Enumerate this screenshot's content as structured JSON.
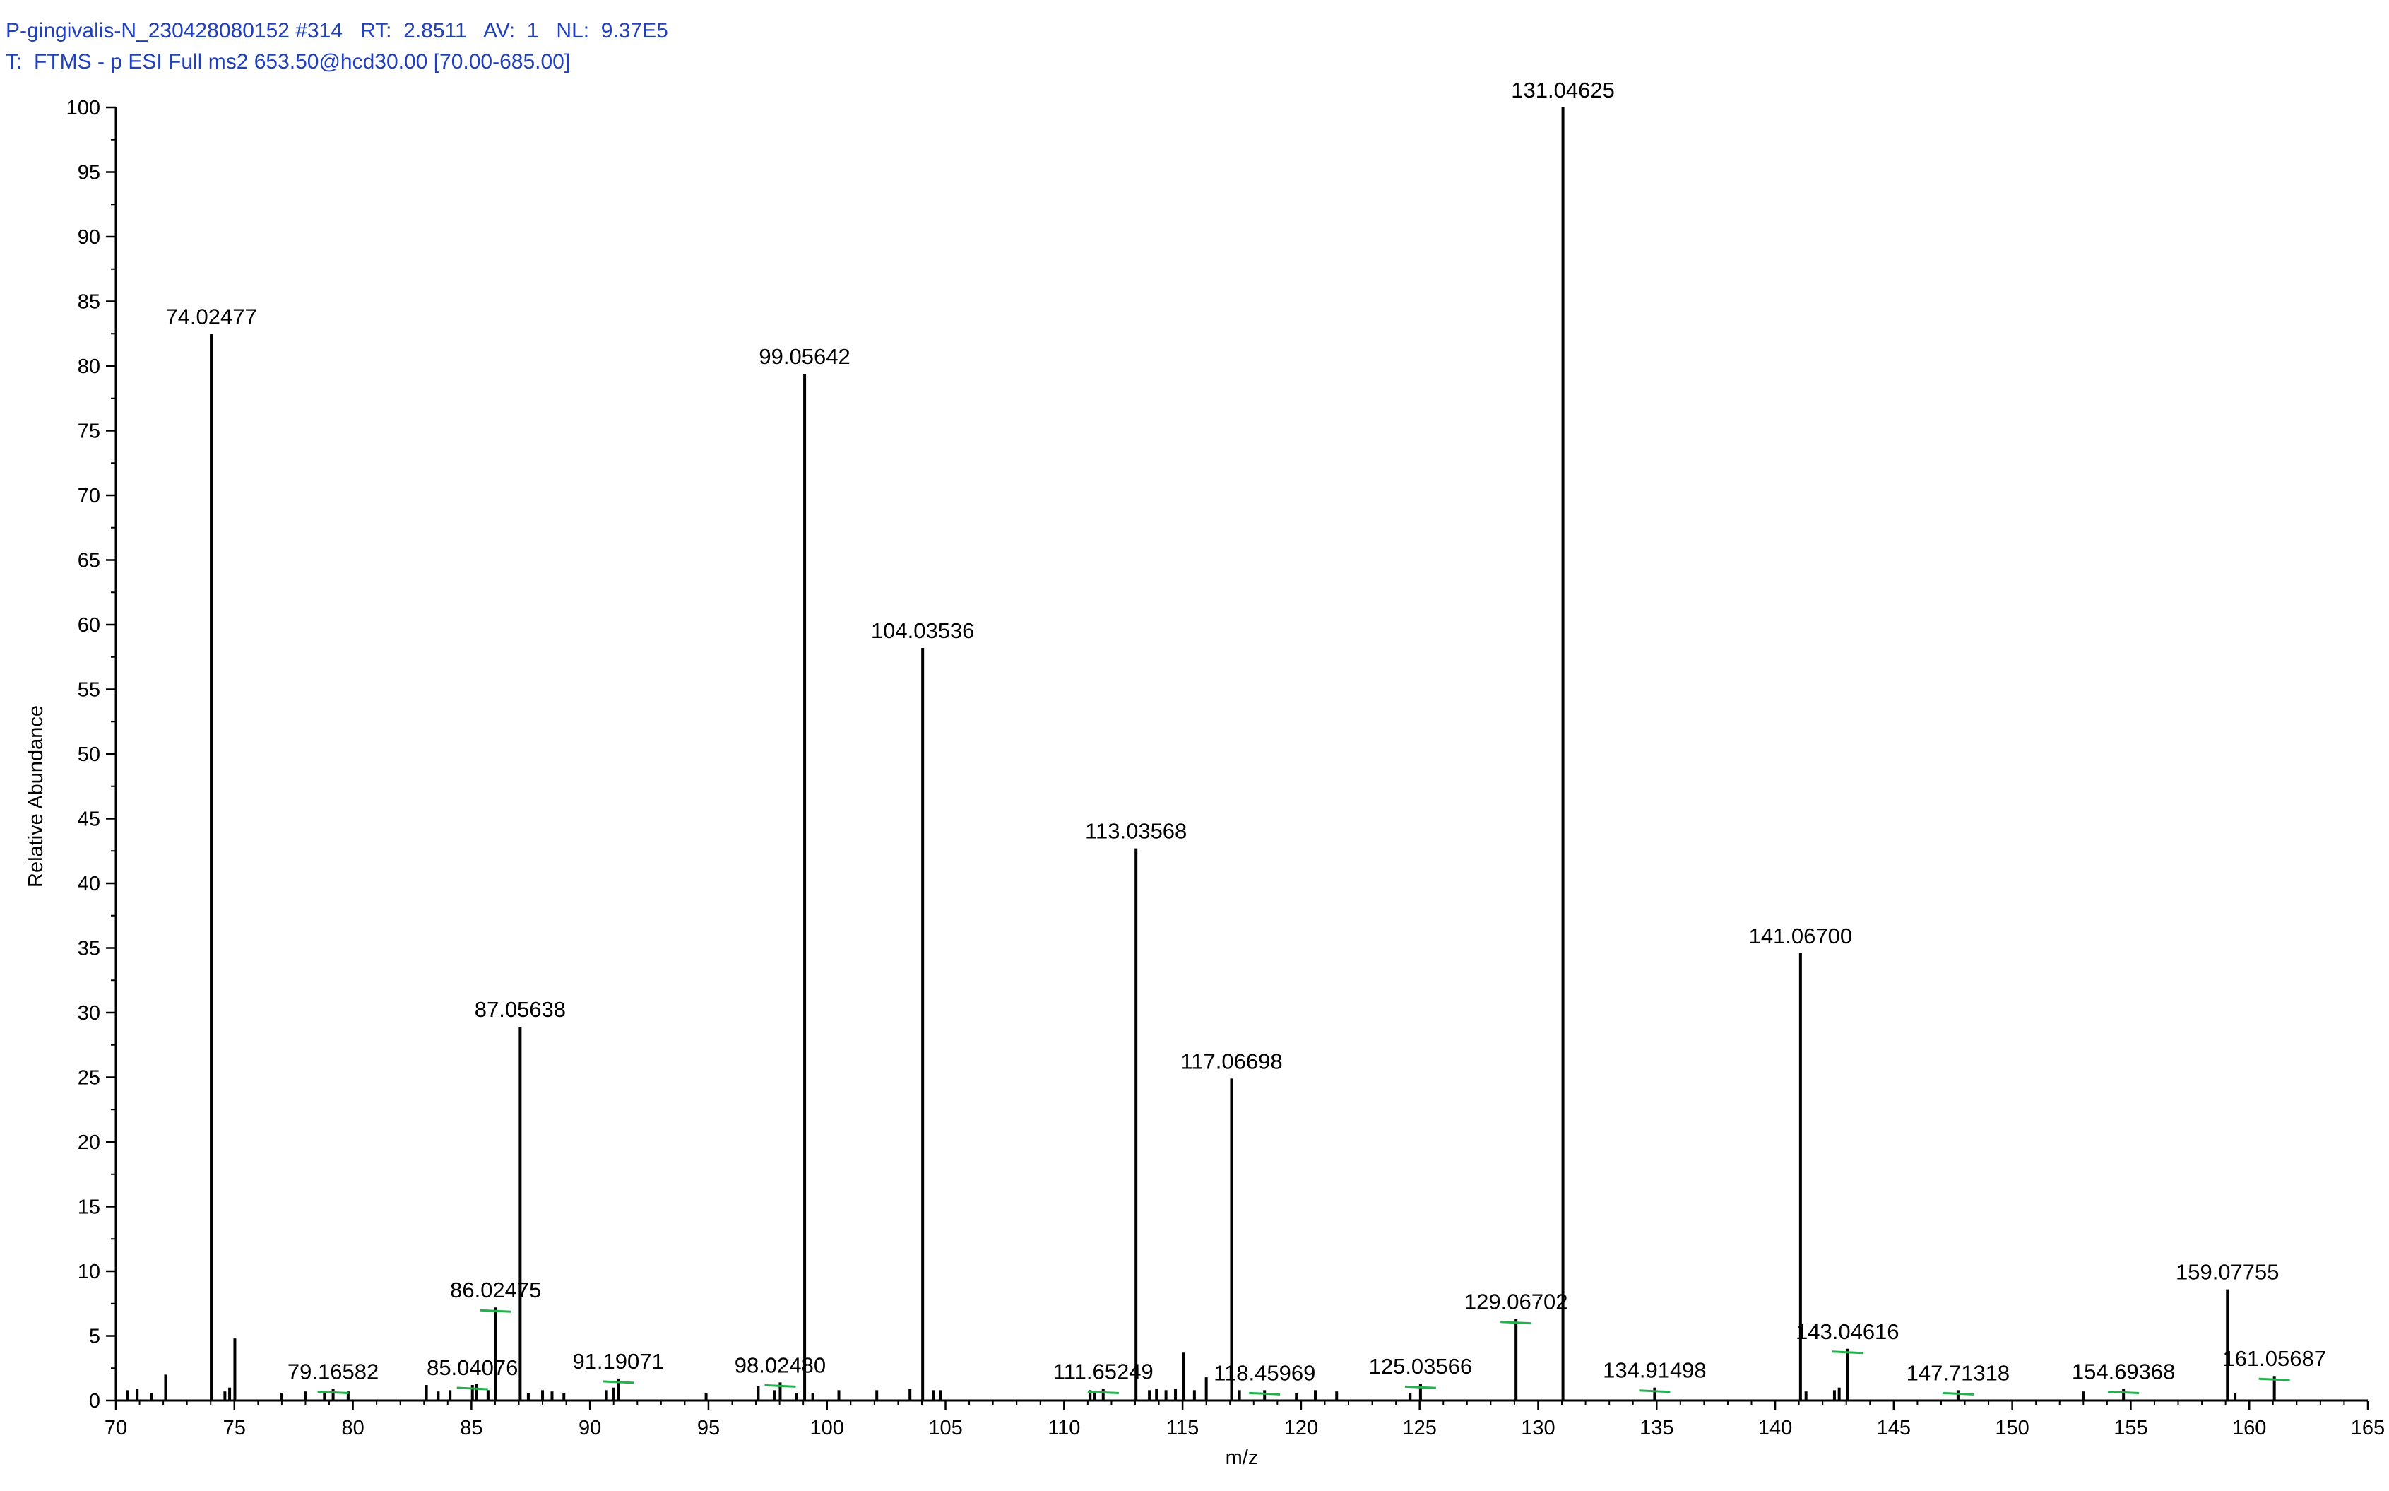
{
  "header": {
    "line1": "P-gingivalis-N_230428080152 #314   RT:  2.8511   AV:  1   NL:  9.37E5",
    "line2": "T:  FTMS - p ESI Full ms2 653.50@hcd30.00 [70.00-685.00]"
  },
  "chart_data": {
    "type": "bar",
    "title": "",
    "xlabel": "m/z",
    "ylabel": "Relative Abundance",
    "xlim": [
      70,
      165
    ],
    "ylim": [
      0,
      100
    ],
    "xticks": [
      70,
      75,
      80,
      85,
      90,
      95,
      100,
      105,
      110,
      115,
      120,
      125,
      130,
      135,
      140,
      145,
      150,
      155,
      160,
      165
    ],
    "yticks": [
      0,
      5,
      10,
      15,
      20,
      25,
      30,
      35,
      40,
      45,
      50,
      55,
      60,
      65,
      70,
      75,
      80,
      85,
      90,
      95,
      100
    ],
    "grid": false,
    "labeled_peaks": [
      {
        "mz": 74.02477,
        "label": "74.02477",
        "intensity": 82.5
      },
      {
        "mz": 79.16582,
        "label": "79.16582",
        "intensity": 0.9
      },
      {
        "mz": 85.04076,
        "label": "85.04076",
        "intensity": 1.2
      },
      {
        "mz": 86.02475,
        "label": "86.02475",
        "intensity": 7.2
      },
      {
        "mz": 87.05638,
        "label": "87.05638",
        "intensity": 28.9
      },
      {
        "mz": 91.19071,
        "label": "91.19071",
        "intensity": 1.7
      },
      {
        "mz": 98.0248,
        "label": "98.02480",
        "intensity": 1.4
      },
      {
        "mz": 99.05642,
        "label": "99.05642",
        "intensity": 79.4
      },
      {
        "mz": 104.03536,
        "label": "104.03536",
        "intensity": 58.2
      },
      {
        "mz": 111.65249,
        "label": "111.65249",
        "intensity": 0.9
      },
      {
        "mz": 113.03568,
        "label": "113.03568",
        "intensity": 42.7
      },
      {
        "mz": 117.06698,
        "label": "117.06698",
        "intensity": 24.9
      },
      {
        "mz": 118.45969,
        "label": "118.45969",
        "intensity": 0.8
      },
      {
        "mz": 125.03566,
        "label": "125.03566",
        "intensity": 1.3
      },
      {
        "mz": 129.06702,
        "label": "129.06702",
        "intensity": 6.3
      },
      {
        "mz": 131.04625,
        "label": "131.04625",
        "intensity": 100
      },
      {
        "mz": 134.91498,
        "label": "134.91498",
        "intensity": 1.0
      },
      {
        "mz": 141.067,
        "label": "141.06700",
        "intensity": 34.6
      },
      {
        "mz": 143.04616,
        "label": "143.04616",
        "intensity": 4.0
      },
      {
        "mz": 147.71318,
        "label": "147.71318",
        "intensity": 0.8
      },
      {
        "mz": 154.69368,
        "label": "154.69368",
        "intensity": 0.9
      },
      {
        "mz": 159.07755,
        "label": "159.07755",
        "intensity": 8.6
      },
      {
        "mz": 161.05687,
        "label": "161.05687",
        "intensity": 1.9
      }
    ],
    "minor_peaks": [
      {
        "mz": 70.5,
        "intensity": 0.8
      },
      {
        "mz": 70.9,
        "intensity": 0.9
      },
      {
        "mz": 71.5,
        "intensity": 0.6
      },
      {
        "mz": 72.1,
        "intensity": 2.0
      },
      {
        "mz": 74.6,
        "intensity": 0.7
      },
      {
        "mz": 74.8,
        "intensity": 1.0
      },
      {
        "mz": 75.02,
        "intensity": 4.8
      },
      {
        "mz": 77.0,
        "intensity": 0.6
      },
      {
        "mz": 78.0,
        "intensity": 0.7
      },
      {
        "mz": 78.8,
        "intensity": 0.6
      },
      {
        "mz": 79.8,
        "intensity": 0.7
      },
      {
        "mz": 83.1,
        "intensity": 1.2
      },
      {
        "mz": 83.6,
        "intensity": 0.7
      },
      {
        "mz": 84.1,
        "intensity": 0.8
      },
      {
        "mz": 85.2,
        "intensity": 1.3
      },
      {
        "mz": 85.7,
        "intensity": 0.8
      },
      {
        "mz": 87.4,
        "intensity": 0.6
      },
      {
        "mz": 88.0,
        "intensity": 0.8
      },
      {
        "mz": 88.4,
        "intensity": 0.7
      },
      {
        "mz": 88.9,
        "intensity": 0.6
      },
      {
        "mz": 90.7,
        "intensity": 0.8
      },
      {
        "mz": 91.0,
        "intensity": 1.0
      },
      {
        "mz": 94.9,
        "intensity": 0.6
      },
      {
        "mz": 97.1,
        "intensity": 1.1
      },
      {
        "mz": 97.8,
        "intensity": 0.8
      },
      {
        "mz": 98.7,
        "intensity": 0.6
      },
      {
        "mz": 99.4,
        "intensity": 0.6
      },
      {
        "mz": 100.5,
        "intensity": 0.8
      },
      {
        "mz": 102.1,
        "intensity": 0.8
      },
      {
        "mz": 103.5,
        "intensity": 0.9
      },
      {
        "mz": 104.5,
        "intensity": 0.8
      },
      {
        "mz": 104.8,
        "intensity": 0.8
      },
      {
        "mz": 111.1,
        "intensity": 0.8
      },
      {
        "mz": 111.3,
        "intensity": 0.7
      },
      {
        "mz": 113.6,
        "intensity": 0.8
      },
      {
        "mz": 113.9,
        "intensity": 0.9
      },
      {
        "mz": 114.3,
        "intensity": 0.8
      },
      {
        "mz": 114.7,
        "intensity": 0.9
      },
      {
        "mz": 115.05,
        "intensity": 3.7
      },
      {
        "mz": 115.5,
        "intensity": 0.8
      },
      {
        "mz": 116.0,
        "intensity": 1.8
      },
      {
        "mz": 117.4,
        "intensity": 0.8
      },
      {
        "mz": 119.8,
        "intensity": 0.6
      },
      {
        "mz": 120.6,
        "intensity": 0.8
      },
      {
        "mz": 121.5,
        "intensity": 0.7
      },
      {
        "mz": 124.6,
        "intensity": 0.6
      },
      {
        "mz": 141.3,
        "intensity": 0.7
      },
      {
        "mz": 142.5,
        "intensity": 0.8
      },
      {
        "mz": 142.7,
        "intensity": 1.0
      },
      {
        "mz": 153.0,
        "intensity": 0.7
      },
      {
        "mz": 159.4,
        "intensity": 0.6
      }
    ]
  }
}
